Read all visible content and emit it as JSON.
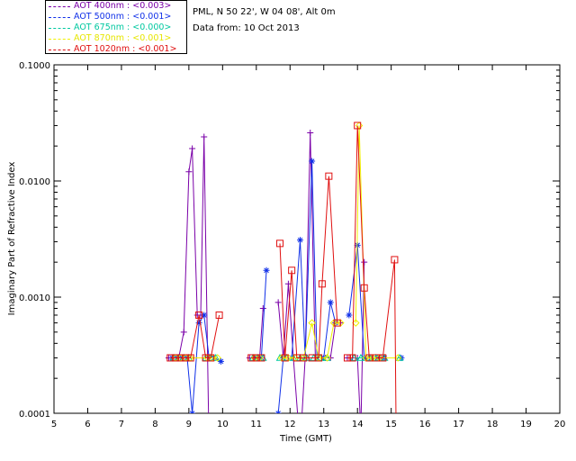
{
  "header": {
    "location": "PML, N 50 22', W 04 08', Alt 0m",
    "date_line": "Data from: 10 Oct 2013"
  },
  "chart_data": {
    "type": "line",
    "title": "",
    "xlabel": "Time (GMT)",
    "ylabel": "Imaginary Part of Refractive Index",
    "xlim": [
      5,
      20
    ],
    "ylim": [
      0.0001,
      0.1
    ],
    "yscale": "log",
    "x_ticks": [
      "5",
      "6",
      "7",
      "8",
      "9",
      "10",
      "11",
      "12",
      "13",
      "14",
      "15",
      "16",
      "17",
      "18",
      "19",
      "20"
    ],
    "y_ticks": [
      "0.0001",
      "0.0010",
      "0.0100",
      "0.1000"
    ],
    "grid": false,
    "legend_position": "top-left",
    "series": [
      {
        "name": "AOT  400nm : <0.003>",
        "color": "#7a00a8",
        "marker": "plus",
        "segments": [
          [
            [
              8.4,
              0.0003
            ],
            [
              8.55,
              0.0003
            ],
            [
              8.7,
              0.0003
            ],
            [
              8.85,
              0.0005
            ],
            [
              9.0,
              0.012
            ],
            [
              9.1,
              0.019
            ],
            [
              9.25,
              0.0007
            ],
            [
              9.35,
              0.0007
            ],
            [
              9.45,
              0.024
            ],
            [
              9.6,
              5e-05
            ]
          ],
          [
            [
              10.8,
              0.0003
            ],
            [
              10.95,
              0.0003
            ],
            [
              11.1,
              0.0003
            ],
            [
              11.2,
              0.0008
            ]
          ],
          [
            [
              11.65,
              0.0009
            ],
            [
              11.8,
              0.0003
            ],
            [
              11.95,
              0.0013
            ],
            [
              12.1,
              0.0003
            ],
            [
              12.3,
              5e-05
            ],
            [
              12.45,
              0.0003
            ],
            [
              12.6,
              0.026
            ],
            [
              12.75,
              0.0003
            ]
          ],
          [
            [
              13.05,
              0.0003
            ],
            [
              13.2,
              0.0003
            ],
            [
              13.35,
              0.0006
            ],
            [
              13.5,
              0.0006
            ]
          ],
          [
            [
              13.7,
              0.0003
            ],
            [
              13.85,
              0.0003
            ],
            [
              14.0,
              0.0003
            ],
            [
              14.1,
              7e-05
            ],
            [
              14.2,
              0.002
            ]
          ],
          [
            [
              14.4,
              0.0003
            ],
            [
              14.55,
              0.0003
            ],
            [
              14.7,
              0.0003
            ]
          ]
        ]
      },
      {
        "name": "AOT  500nm : <0.001>",
        "color": "#1030e8",
        "marker": "star",
        "segments": [
          [
            [
              8.5,
              0.0003
            ],
            [
              8.65,
              0.0003
            ],
            [
              8.8,
              0.0003
            ],
            [
              8.95,
              0.0003
            ],
            [
              9.1,
              0.0001
            ],
            [
              9.3,
              0.0006
            ],
            [
              9.45,
              0.0007
            ],
            [
              9.6,
              0.0003
            ],
            [
              9.75,
              0.0003
            ],
            [
              9.95,
              0.00028
            ]
          ],
          [
            [
              11.0,
              0.0003
            ],
            [
              11.15,
              0.0003
            ],
            [
              11.3,
              0.0017
            ]
          ],
          [
            [
              11.65,
              0.0001
            ],
            [
              11.8,
              0.0003
            ],
            [
              12.05,
              0.0003
            ],
            [
              12.3,
              0.0031
            ],
            [
              12.45,
              0.0003
            ],
            [
              12.65,
              0.0148
            ],
            [
              12.8,
              0.0003
            ],
            [
              13.0,
              0.0003
            ],
            [
              13.2,
              0.0009
            ],
            [
              13.35,
              0.0006
            ]
          ],
          [
            [
              13.75,
              0.0007
            ],
            [
              14.0,
              0.0028
            ],
            [
              14.2,
              0.0003
            ],
            [
              14.4,
              0.0003
            ],
            [
              14.6,
              0.0003
            ],
            [
              14.8,
              0.0003
            ],
            [
              15.3,
              0.0003
            ]
          ]
        ]
      },
      {
        "name": "AOT  675nm : <0.000>",
        "color": "#00c8a0",
        "marker": "triangle",
        "segments": [
          [
            [
              8.55,
              0.0003
            ],
            [
              8.7,
              0.0003
            ],
            [
              8.85,
              0.0003
            ],
            [
              9.0,
              0.0003
            ],
            [
              9.5,
              0.0003
            ],
            [
              9.65,
              0.0003
            ],
            [
              9.8,
              0.0003
            ]
          ],
          [
            [
              10.9,
              0.0003
            ],
            [
              11.05,
              0.0003
            ],
            [
              11.2,
              0.0003
            ]
          ],
          [
            [
              11.7,
              0.0003
            ],
            [
              11.9,
              0.0003
            ],
            [
              12.1,
              0.0003
            ],
            [
              12.3,
              0.0003
            ],
            [
              12.5,
              0.0003
            ],
            [
              12.7,
              0.0003
            ],
            [
              12.9,
              0.0003
            ],
            [
              13.1,
              0.0003
            ]
          ],
          [
            [
              13.9,
              0.0003
            ],
            [
              14.1,
              0.0003
            ],
            [
              14.35,
              0.0003
            ],
            [
              14.55,
              0.0003
            ],
            [
              14.8,
              0.0003
            ],
            [
              15.25,
              0.0003
            ]
          ]
        ]
      },
      {
        "name": "AOT  870nm : <0.001>",
        "color": "#f0f000",
        "marker": "diamond",
        "segments": [
          [
            [
              8.6,
              0.0003
            ],
            [
              8.75,
              0.0003
            ],
            [
              8.9,
              0.0003
            ],
            [
              9.05,
              0.0003
            ],
            [
              9.55,
              0.0003
            ],
            [
              9.7,
              0.0003
            ],
            [
              9.85,
              0.0003
            ]
          ],
          [
            [
              10.95,
              0.0003
            ],
            [
              11.1,
              0.0003
            ]
          ],
          [
            [
              11.75,
              0.0003
            ],
            [
              11.95,
              0.0003
            ],
            [
              12.15,
              0.0003
            ],
            [
              12.4,
              0.0003
            ],
            [
              12.65,
              0.0006
            ],
            [
              12.85,
              0.0003
            ],
            [
              13.1,
              0.0003
            ],
            [
              13.3,
              0.0006
            ],
            [
              13.5,
              0.0006
            ]
          ],
          [
            [
              13.95,
              0.0006
            ],
            [
              14.05,
              0.03
            ],
            [
              14.25,
              0.0003
            ],
            [
              14.45,
              0.0003
            ],
            [
              14.65,
              0.0003
            ],
            [
              15.2,
              0.0003
            ]
          ]
        ]
      },
      {
        "name": "AOT 1020nm : <0.001>",
        "color": "#e01010",
        "marker": "square",
        "segments": [
          [
            [
              8.45,
              0.0003
            ],
            [
              8.6,
              0.0003
            ],
            [
              8.75,
              0.0003
            ],
            [
              8.9,
              0.0003
            ],
            [
              9.05,
              0.0003
            ],
            [
              9.3,
              0.0007
            ],
            [
              9.5,
              0.0003
            ],
            [
              9.65,
              0.0003
            ],
            [
              9.9,
              0.0007
            ]
          ],
          [
            [
              10.85,
              0.0003
            ],
            [
              11.0,
              0.0003
            ],
            [
              11.15,
              0.0003
            ]
          ],
          [
            [
              11.7,
              0.0029
            ],
            [
              11.85,
              0.0003
            ],
            [
              12.05,
              0.0017
            ],
            [
              12.2,
              0.0003
            ],
            [
              12.4,
              0.0003
            ],
            [
              12.65,
              0.0003
            ],
            [
              12.85,
              0.0003
            ],
            [
              12.95,
              0.0013
            ],
            [
              13.15,
              0.011
            ],
            [
              13.4,
              0.0006
            ]
          ],
          [
            [
              13.7,
              0.0003
            ],
            [
              13.85,
              0.0003
            ],
            [
              14.0,
              0.03
            ],
            [
              14.2,
              0.0012
            ],
            [
              14.35,
              0.0003
            ]
          ],
          [
            [
              14.55,
              0.0003
            ],
            [
              14.75,
              0.0003
            ],
            [
              15.1,
              0.0021
            ],
            [
              15.15,
              5e-05
            ]
          ]
        ]
      }
    ]
  }
}
